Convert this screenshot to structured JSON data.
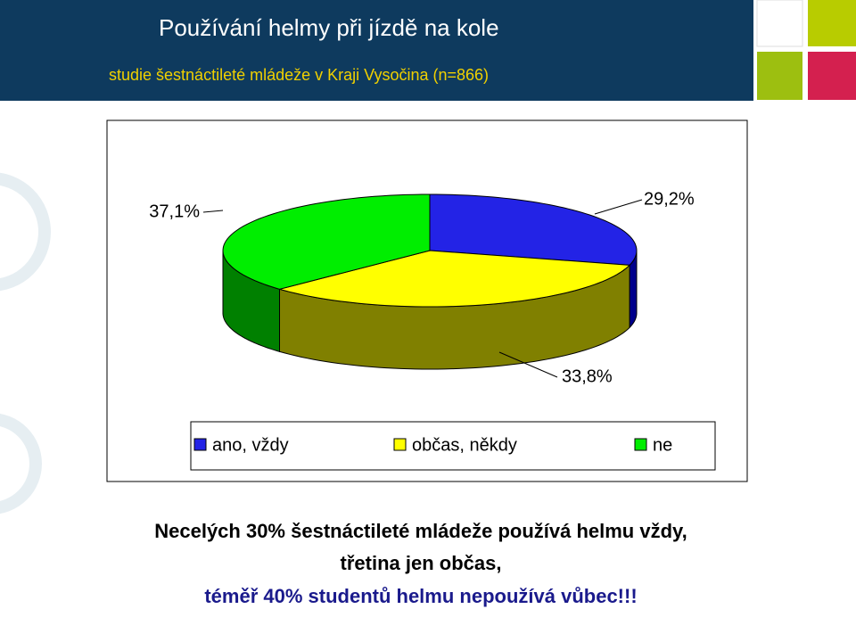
{
  "chart_data": {
    "type": "pie3d",
    "title": "Používání helmy při jízdě na kole",
    "subtitle": "studie šestnáctileté mládeže v Kraji Vysočina (n=866)",
    "categories": [
      "ano, vždy",
      "občas, někdy",
      "ne"
    ],
    "values": [
      29.2,
      33.8,
      37.1
    ],
    "value_labels": [
      "29,2%",
      "33,8%",
      "37,1%"
    ],
    "colors": [
      "#2323e6",
      "#ffff00",
      "#00ee00"
    ],
    "side_colors": [
      "#00008c",
      "#808000",
      "#008000"
    ],
    "legend": "bottom",
    "annotations": [
      "Necelých 30% šestnáctileté mládeže používá helmu vždy,",
      "třetina jen občas,",
      "téměř 40% studentů helmu nepoužívá vůbec!!!"
    ]
  }
}
